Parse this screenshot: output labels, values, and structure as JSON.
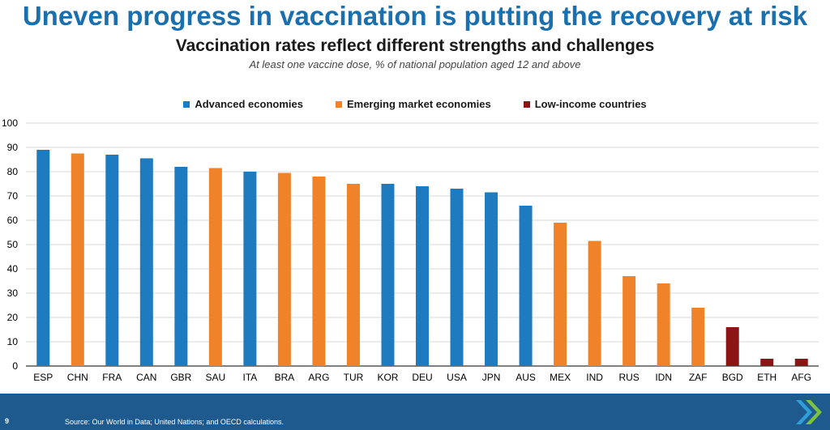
{
  "slide": {
    "title": "Uneven progress in vaccination is putting the recovery at risk",
    "page_number": "9",
    "source": "Source: Our World in Data; United Nations; and OECD calculations."
  },
  "chart_data": {
    "type": "bar",
    "title": "Vaccination rates reflect different strengths and challenges",
    "subtitle": "At least one vaccine dose, % of national population aged 12 and above",
    "categories": [
      "ESP",
      "CHN",
      "FRA",
      "CAN",
      "GBR",
      "SAU",
      "ITA",
      "BRA",
      "ARG",
      "TUR",
      "KOR",
      "DEU",
      "USA",
      "JPN",
      "AUS",
      "MEX",
      "IND",
      "RUS",
      "IDN",
      "ZAF",
      "BGD",
      "ETH",
      "AFG"
    ],
    "values": [
      89,
      87.5,
      87,
      85.5,
      82,
      81.5,
      80,
      79.5,
      78,
      75,
      75,
      74,
      73,
      71.5,
      66,
      59,
      51.5,
      37,
      34,
      24,
      16,
      3,
      3
    ],
    "groups": [
      "adv",
      "eme",
      "adv",
      "adv",
      "adv",
      "eme",
      "adv",
      "eme",
      "eme",
      "eme",
      "adv",
      "adv",
      "adv",
      "adv",
      "adv",
      "eme",
      "eme",
      "eme",
      "eme",
      "eme",
      "low",
      "low",
      "low"
    ],
    "series": [
      {
        "key": "adv",
        "name": "Advanced economies",
        "color": "#1f7bc0"
      },
      {
        "key": "eme",
        "name": "Emerging market economies",
        "color": "#f0832a"
      },
      {
        "key": "low",
        "name": "Low-income countries",
        "color": "#8b1414"
      }
    ],
    "ylim": [
      0,
      100
    ],
    "yticks": [
      0,
      10,
      20,
      30,
      40,
      50,
      60,
      70,
      80,
      90,
      100
    ],
    "grid": true,
    "legend_position": "top-center"
  }
}
